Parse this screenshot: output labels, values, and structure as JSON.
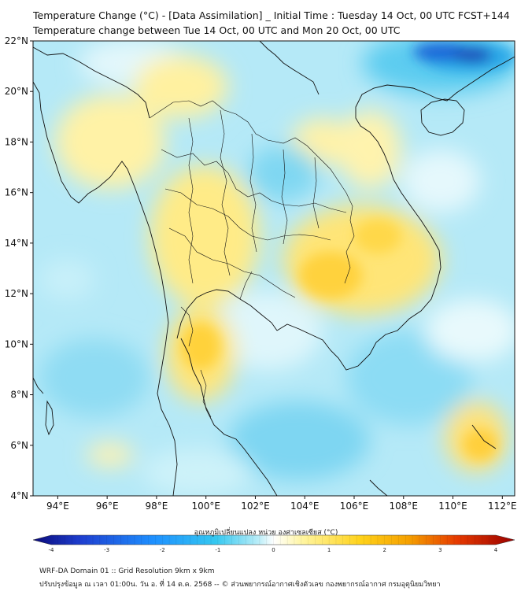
{
  "title_line1": "Temperature Change (°C) - [Data Assimilation] _ Initial Time : Tuesday 14 Oct, 00 UTC FCST+144",
  "title_line2": "Temperature change between Tue 14 Oct, 00 UTC and Mon 20 Oct, 00 UTC",
  "map": {
    "lat_labels": [
      "22°N",
      "20°N",
      "18°N",
      "16°N",
      "14°N",
      "12°N",
      "10°N",
      "8°N",
      "6°N",
      "4°N"
    ],
    "lon_labels": [
      "94°E",
      "96°E",
      "98°E",
      "100°E",
      "102°E",
      "104°E",
      "106°E",
      "108°E",
      "110°E",
      "112°E"
    ],
    "lat_range": [
      4,
      22
    ],
    "lon_range": [
      93,
      112.5
    ]
  },
  "colorbar": {
    "label": "อุณหภูมิเปลี่ยนแปลง หน่วย องศาเซลเซียส (°C)",
    "ticks": [
      "-4",
      "-3",
      "-2",
      "-1",
      "0",
      "1",
      "2",
      "3",
      "4"
    ],
    "range": [
      -4,
      4
    ],
    "colors": [
      "#0a0a7a",
      "#1e3fd0",
      "#1e90ff",
      "#35c8f0",
      "#9fe6f5",
      "#ffffff",
      "#fff5a0",
      "#ffd21a",
      "#f5a000",
      "#e63a00",
      "#9a0000"
    ]
  },
  "footer_line1": "WRF-DA Domain 01 :: Grid Resolution 9km x 9km",
  "footer_line2": "ปรับปรุงข้อมูล ณ เวลา 01:00น. วัน อ. ที่ 14 ต.ค. 2568 -- © ส่วนพยากรณ์อากาศเชิงตัวเลข กองพยากรณ์อากาศ กรมอุตุนิยมวิทยา"
}
